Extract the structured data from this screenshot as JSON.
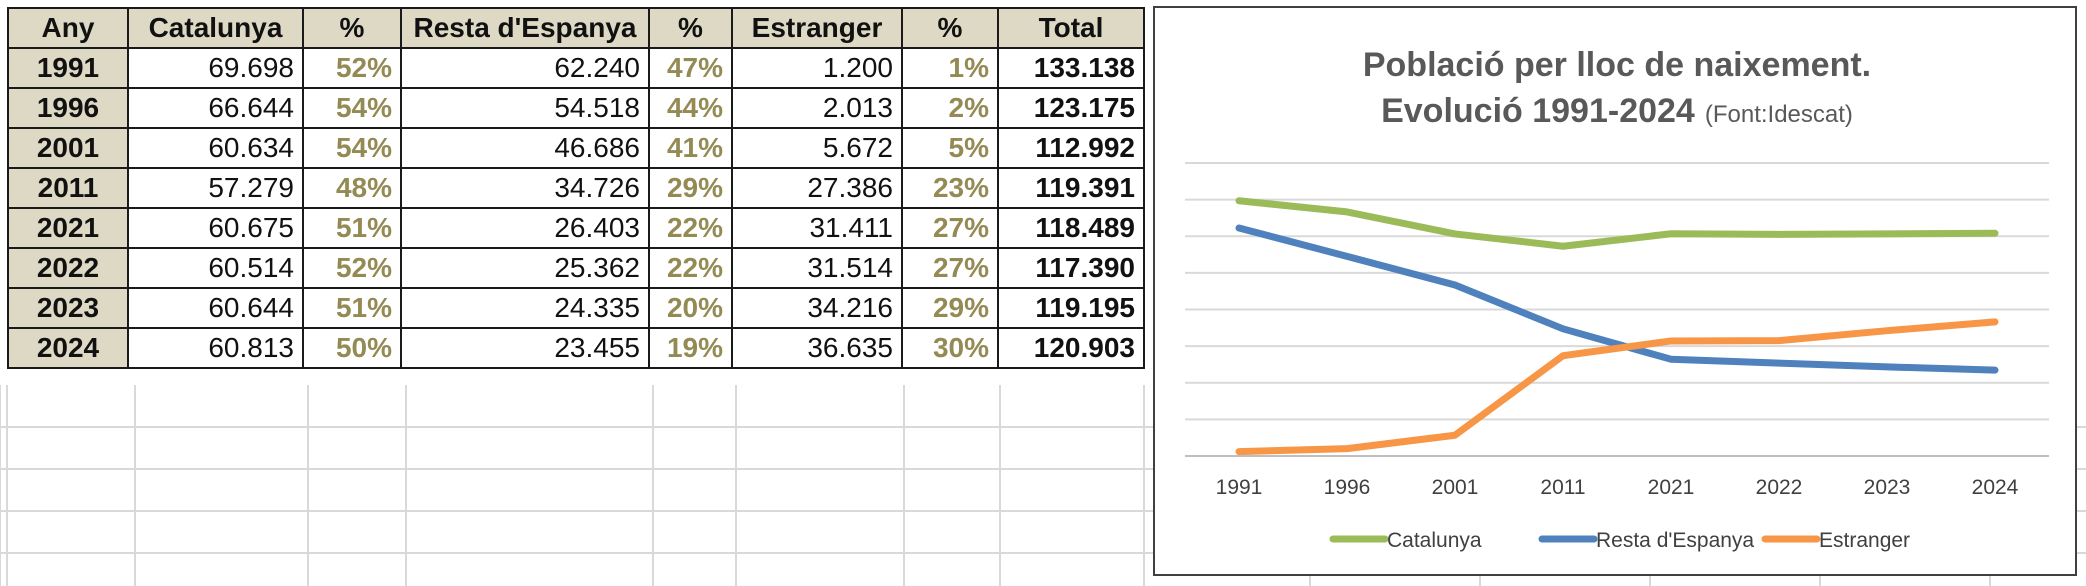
{
  "table": {
    "headers": [
      "Any",
      "Catalunya",
      "%",
      "Resta d'Espanya",
      "%",
      "Estranger",
      "%",
      "Total"
    ],
    "rows": [
      [
        "1991",
        "69.698",
        "52%",
        "62.240",
        "47%",
        "1.200",
        "1%",
        "133.138"
      ],
      [
        "1996",
        "66.644",
        "54%",
        "54.518",
        "44%",
        "2.013",
        "2%",
        "123.175"
      ],
      [
        "2001",
        "60.634",
        "54%",
        "46.686",
        "41%",
        "5.672",
        "5%",
        "112.992"
      ],
      [
        "2011",
        "57.279",
        "48%",
        "34.726",
        "29%",
        "27.386",
        "23%",
        "119.391"
      ],
      [
        "2021",
        "60.675",
        "51%",
        "26.403",
        "22%",
        "31.411",
        "27%",
        "118.489"
      ],
      [
        "2022",
        "60.514",
        "52%",
        "25.362",
        "22%",
        "31.514",
        "27%",
        "117.390"
      ],
      [
        "2023",
        "60.644",
        "51%",
        "24.335",
        "20%",
        "34.216",
        "29%",
        "119.195"
      ],
      [
        "2024",
        "60.813",
        "50%",
        "23.455",
        "19%",
        "36.635",
        "30%",
        "120.903"
      ]
    ]
  },
  "chart_data": {
    "type": "line",
    "title": "Població per lloc de naixement.",
    "title_line2": "Evolució 1991-2024",
    "source_note": "(Font:Idescat)",
    "categories": [
      "1991",
      "1996",
      "2001",
      "2011",
      "2021",
      "2022",
      "2023",
      "2024"
    ],
    "series": [
      {
        "name": "Catalunya",
        "color": "#9bbb59",
        "values": [
          69698,
          66644,
          60634,
          57279,
          60675,
          60514,
          60644,
          60813
        ]
      },
      {
        "name": "Resta d'Espanya",
        "color": "#4f81bd",
        "values": [
          62240,
          54518,
          46686,
          34726,
          26403,
          25362,
          24335,
          23455
        ]
      },
      {
        "name": "Estranger",
        "color": "#f79646",
        "values": [
          1200,
          2013,
          5672,
          27386,
          31411,
          31514,
          34216,
          36635
        ]
      }
    ],
    "ylim": [
      0,
      80000
    ],
    "grid": true,
    "legend": "bottom",
    "xlabel": "",
    "ylabel": ""
  }
}
